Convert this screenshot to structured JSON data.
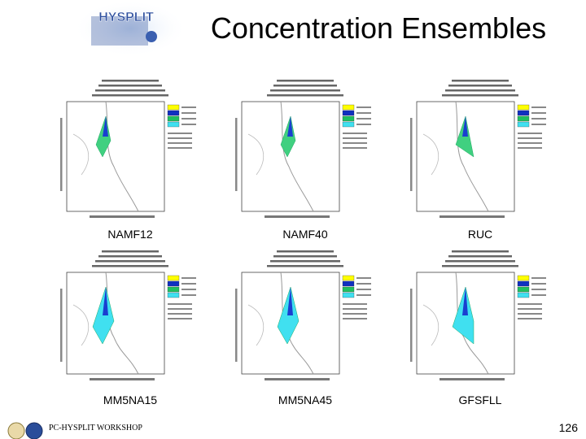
{
  "header": {
    "logo": "HYSPLIT",
    "title": "Concentration Ensembles"
  },
  "panels": [
    {
      "label": "NAMF12"
    },
    {
      "label": "NAMF40"
    },
    {
      "label": "RUC"
    },
    {
      "label": "MM5NA15"
    },
    {
      "label": "MM5NA45"
    },
    {
      "label": "GFSFLL"
    }
  ],
  "footer": {
    "workshop": "PC-HYSPLIT WORKSHOP",
    "page": "126"
  }
}
